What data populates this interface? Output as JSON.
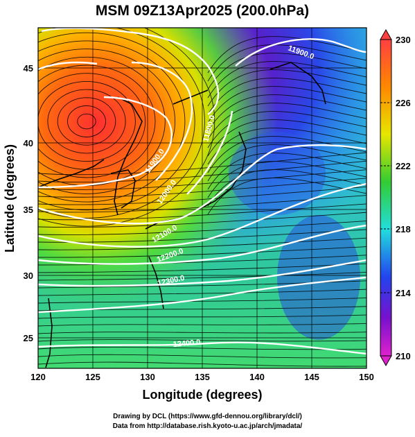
{
  "title": "MSM 09Z13Apr2025 (200.0hPa)",
  "x_axis": {
    "label": "Longitude (degrees)",
    "ticks": [
      "120",
      "125",
      "130",
      "135",
      "140",
      "145",
      "150"
    ]
  },
  "y_axis": {
    "label": "Latitude  (degrees)",
    "ticks": [
      "25",
      "30",
      "35",
      "40",
      "45"
    ]
  },
  "colorbar": {
    "ticks": [
      "230",
      "226",
      "222",
      "218",
      "214",
      "210"
    ]
  },
  "contour_labels": [
    "11900.0",
    "11800.0",
    "11900.0",
    "12000.0",
    "12100.0",
    "12200.0",
    "12300.0",
    "12400.0"
  ],
  "credits": {
    "line1": "Drawing by DCL (https://www.gfd-dennou.org/library/dcl/)",
    "line2": "Data from http://database.rish.kyoto-u.ac.jp/arch/jmadata/"
  },
  "map_data": {
    "type": "heatmap",
    "variable_range": [
      210,
      230
    ],
    "x_range": [
      120,
      150
    ],
    "y_range": [
      22.5,
      47.5
    ],
    "warm_center": {
      "lon": 125.5,
      "lat": 41.2
    },
    "cold_center": {
      "lon": 142,
      "lat": 46
    }
  }
}
